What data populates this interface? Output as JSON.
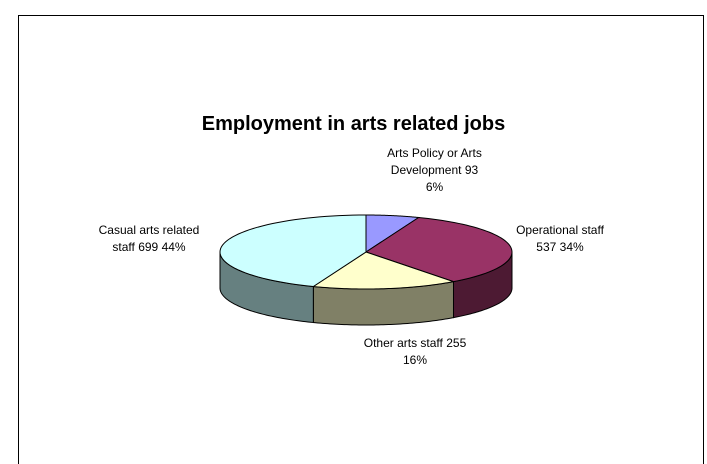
{
  "chart_data": {
    "type": "pie",
    "title": "Employment in arts related jobs",
    "categories": [
      "Arts Policy or Arts Development",
      "Operational staff",
      "Other arts staff",
      "Casual arts related staff"
    ],
    "values": [
      93,
      537,
      255,
      699
    ],
    "percent_labels": [
      "6%",
      "34%",
      "16%",
      "44%"
    ],
    "colors": [
      "#9999ff",
      "#993366",
      "#ffffcc",
      "#ccffff"
    ],
    "side_colors": [
      "#4d4d80",
      "#4d1a33",
      "#808066",
      "#668080"
    ]
  }
}
